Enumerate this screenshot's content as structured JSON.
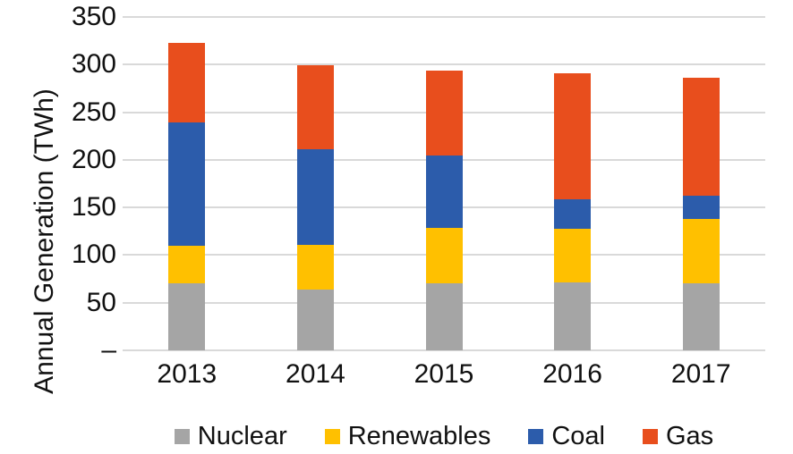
{
  "chart_data": {
    "type": "bar",
    "stacked": true,
    "title": "",
    "xlabel": "",
    "ylabel": "Annual Generation (TWh)",
    "ylim": [
      0,
      350
    ],
    "grid": true,
    "gridline_color": "#d9d9d9",
    "text_color": "#111111",
    "background": "#ffffff",
    "yticks": [
      {
        "value": 350,
        "label": "350"
      },
      {
        "value": 300,
        "label": "300"
      },
      {
        "value": 250,
        "label": "250"
      },
      {
        "value": 200,
        "label": "200"
      },
      {
        "value": 150,
        "label": "150"
      },
      {
        "value": 100,
        "label": "100"
      },
      {
        "value": 50,
        "label": "50"
      },
      {
        "value": 0,
        "label": "–"
      }
    ],
    "categories": [
      "2013",
      "2014",
      "2015",
      "2016",
      "2017"
    ],
    "series": [
      {
        "name": "Nuclear",
        "color": "#a5a5a5",
        "values": [
          70,
          64,
          70,
          71,
          70
        ]
      },
      {
        "name": "Renewables",
        "color": "#ffc000",
        "values": [
          40,
          47,
          59,
          57,
          68
        ]
      },
      {
        "name": "Coal",
        "color": "#2c5cab",
        "values": [
          129,
          100,
          76,
          31,
          24
        ]
      },
      {
        "name": "Gas",
        "color": "#e84e1d",
        "values": [
          84,
          88,
          89,
          132,
          124
        ]
      }
    ],
    "totals": [
      323,
      299,
      294,
      291,
      286
    ],
    "legend": {
      "position": "bottom",
      "labels": [
        "Nuclear",
        "Renewables",
        "Coal",
        "Gas"
      ]
    }
  }
}
